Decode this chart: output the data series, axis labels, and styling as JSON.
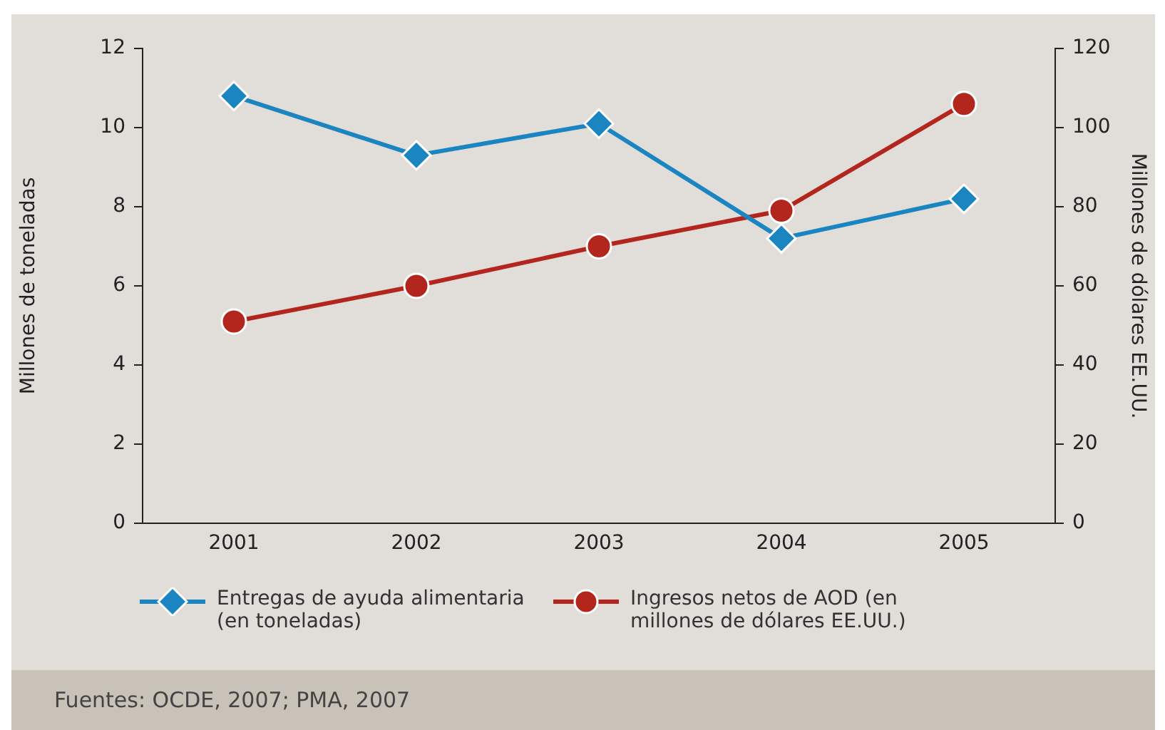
{
  "chart_data": {
    "type": "line",
    "categories": [
      "2001",
      "2002",
      "2003",
      "2004",
      "2005"
    ],
    "ylabel": "Millones de toneladas",
    "y2label": "Millones de dólares EE.UU.",
    "ylim": [
      0,
      12
    ],
    "yticks": [
      0,
      2,
      4,
      6,
      8,
      10,
      12
    ],
    "y2lim": [
      0,
      120
    ],
    "y2ticks": [
      0,
      20,
      40,
      60,
      80,
      100,
      120
    ],
    "grid": false,
    "legend": "bottom",
    "line_style": "solid",
    "series": [
      {
        "name": "Entregas de ayuda alimentaria (en toneladas)",
        "color": "#1a85c0",
        "marker": "diamond",
        "values": [
          10.8,
          9.3,
          10.1,
          7.2,
          8.2
        ]
      },
      {
        "name": "Ingresos netos de AOD (en millones de dólares EE.UU.)",
        "color": "#b3261e",
        "marker": "circle",
        "axis": "y2",
        "values": [
          51,
          60,
          70,
          79,
          106
        ]
      }
    ],
    "annotations": [
      "Fuentes: OCDE, 2007; PMA, 2007"
    ]
  }
}
